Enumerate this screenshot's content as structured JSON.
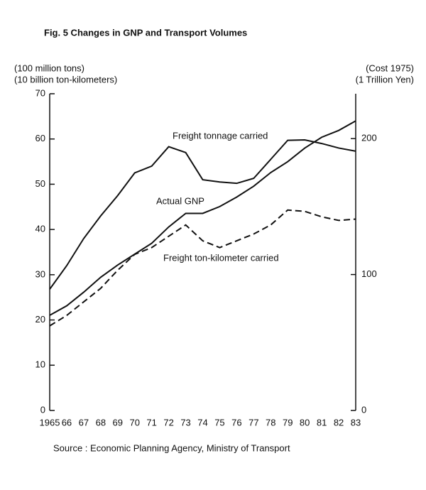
{
  "chart_data": {
    "type": "line",
    "title": "Fig. 5    Changes in GNP and Transport Volumes",
    "ylabel": [
      "(100 million tons)",
      "(10 billion ton-kilometers)"
    ],
    "y2label": [
      "(Cost 1975)",
      "(1 Trillion Yen)"
    ],
    "source": "Source : Economic Planning  Agency, Ministry of Transport",
    "categories": [
      "1965",
      "66",
      "67",
      "68",
      "69",
      "70",
      "71",
      "72",
      "73",
      "74",
      "75",
      "76",
      "77",
      "78",
      "79",
      "80",
      "81",
      "82",
      "83"
    ],
    "ylim": [
      0,
      70
    ],
    "yticks": [
      0,
      10,
      20,
      30,
      40,
      50,
      60,
      70
    ],
    "y2lim": [
      0,
      233
    ],
    "y2ticks": [
      0,
      100,
      200
    ],
    "series": [
      {
        "name": "Freight tonnage carried",
        "color": "#111111",
        "dash": false,
        "values": [
          26.8,
          32,
          38,
          43,
          47.5,
          52.5,
          54,
          58.3,
          57,
          51,
          50.5,
          50.2,
          51.3,
          55.5,
          59.7,
          59.8,
          59,
          58,
          57.3
        ]
      },
      {
        "name": "Actual GNP",
        "color": "#111111",
        "dash": false,
        "axis": "y2",
        "values": [
          70,
          77,
          87,
          98,
          107,
          115,
          123,
          135,
          145,
          145,
          150,
          157,
          165,
          175,
          183,
          193,
          201,
          206,
          213
        ]
      },
      {
        "name": "Freight ton-kilometer carried",
        "color": "#111111",
        "dash": true,
        "values": [
          18.7,
          21,
          24,
          27,
          31,
          34.5,
          36,
          38.5,
          41,
          37.5,
          36,
          37.5,
          39,
          41,
          44.3,
          44,
          42.8,
          42,
          42.3
        ]
      }
    ]
  }
}
